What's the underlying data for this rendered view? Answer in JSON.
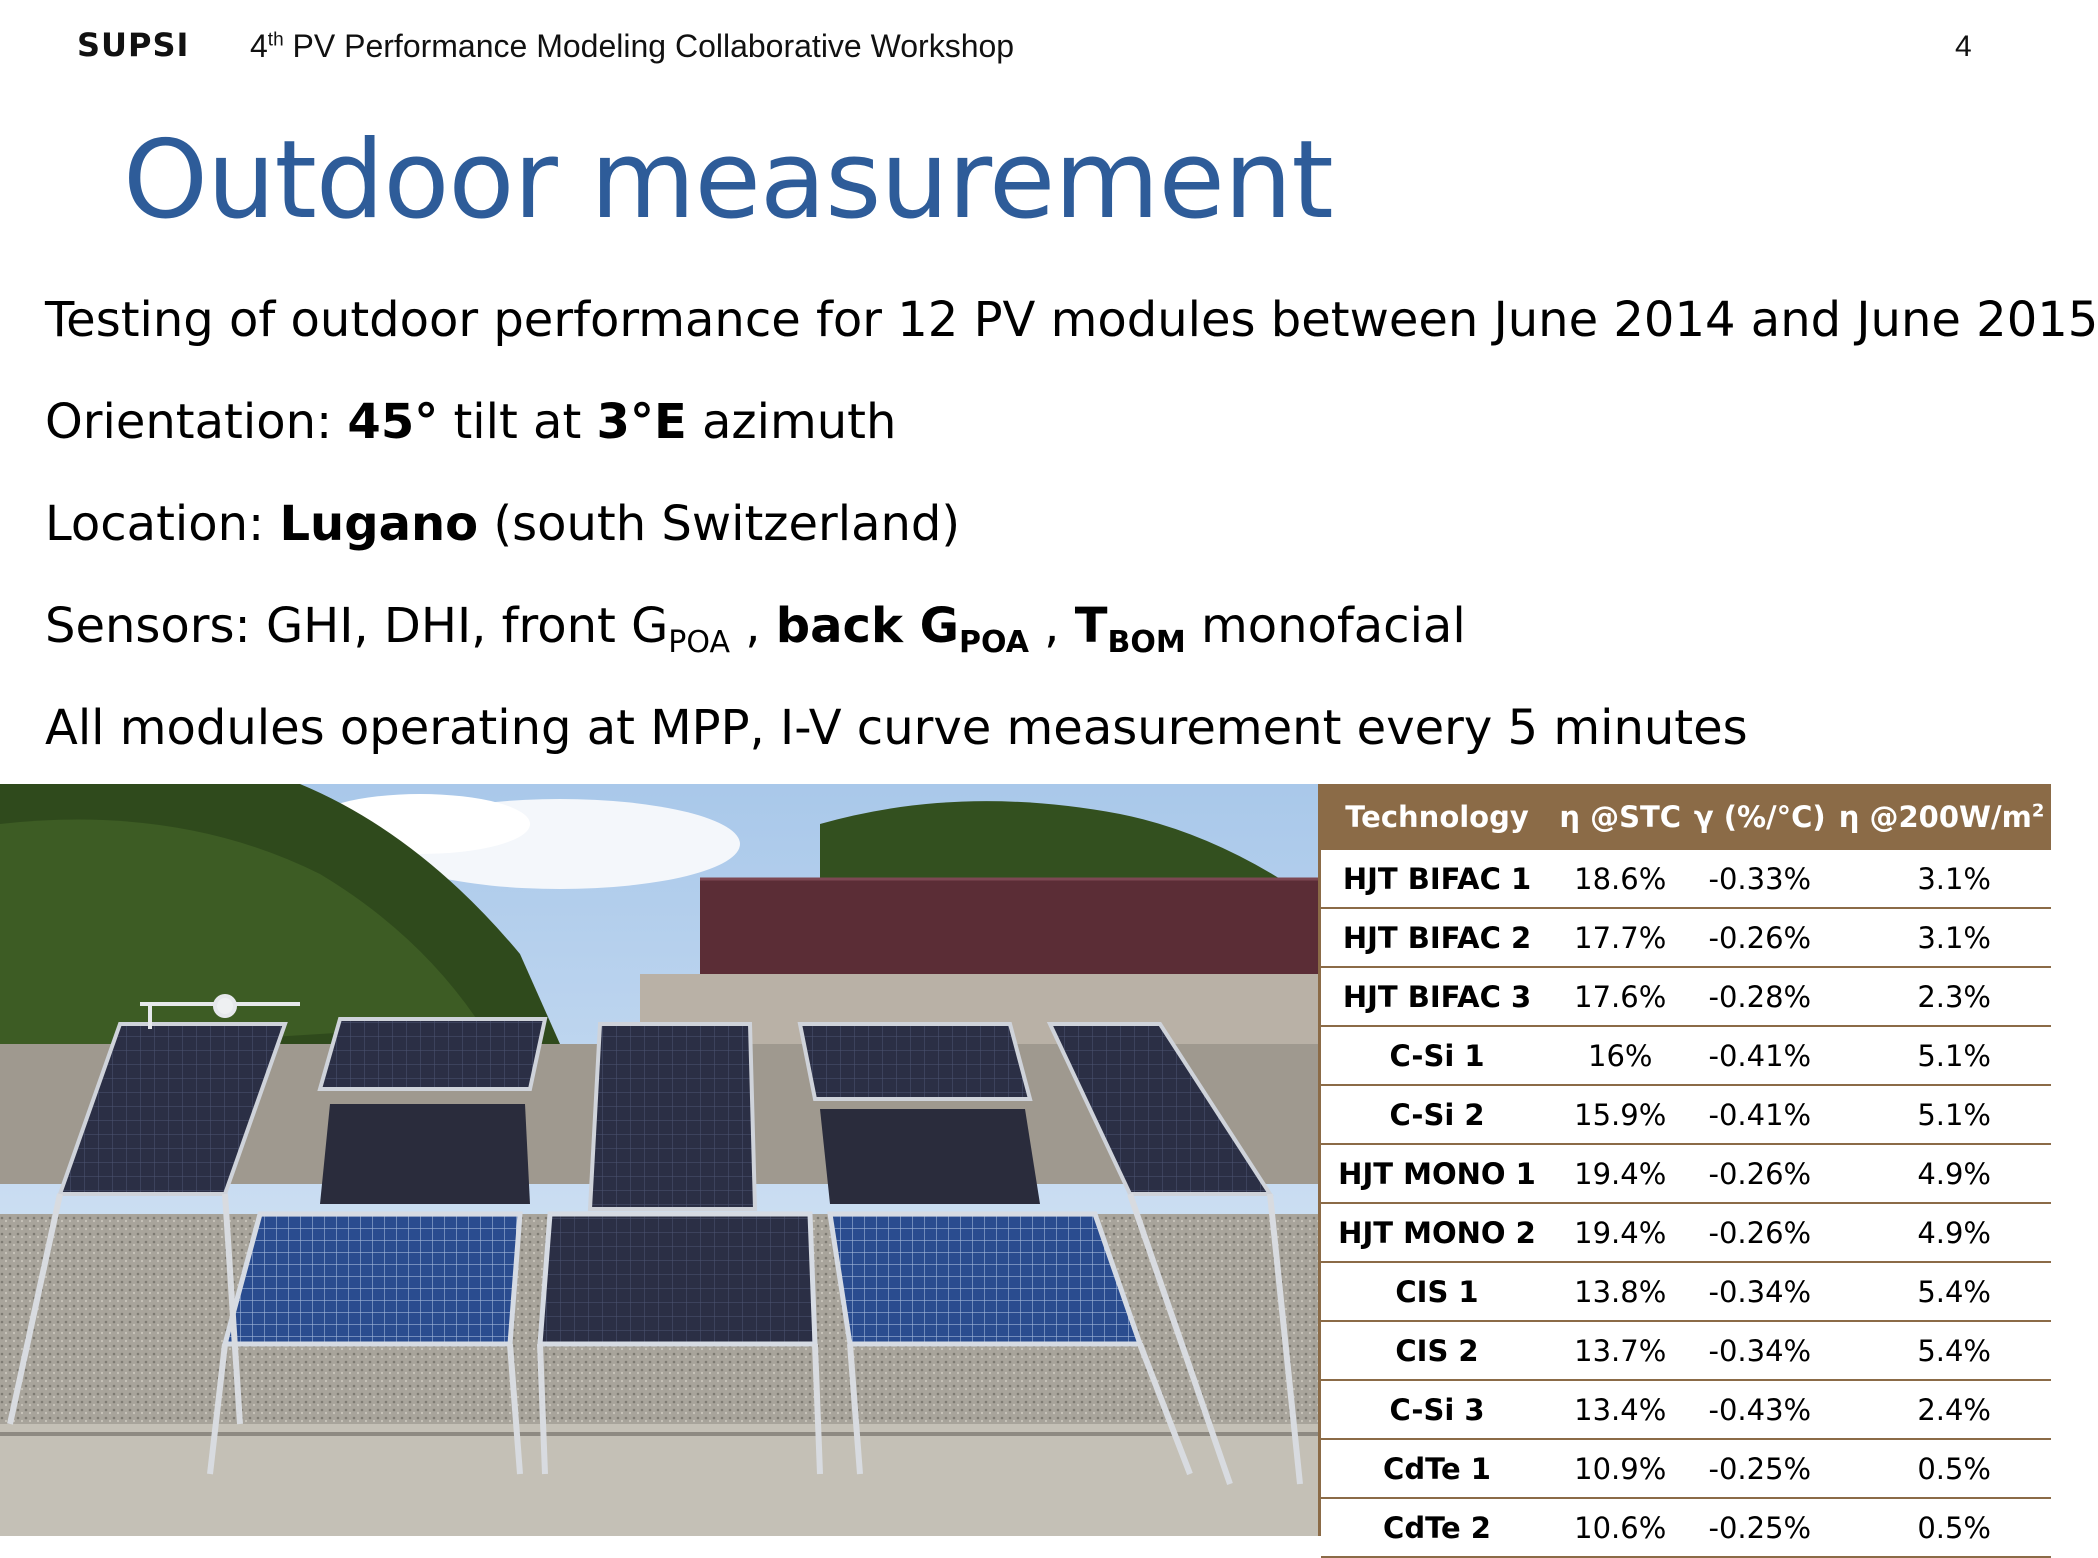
{
  "header": {
    "logo": "SUPSI",
    "ordinal": "4",
    "ordinal_suffix": "th",
    "workshop_title": " PV Performance Modeling Collaborative Workshop",
    "page_number": "4"
  },
  "slide": {
    "title": "Outdoor measurement",
    "bullets": {
      "b1": "Testing of outdoor performance for 12 PV modules between June 2014 and June 2015",
      "b2_prefix": "Orientation: ",
      "b2_tilt": "45°",
      "b2_mid": " tilt at ",
      "b2_azimuth": "3°E",
      "b2_suffix": " azimuth",
      "b3_prefix": "Location: ",
      "b3_city": "Lugano",
      "b3_suffix": " (south Switzerland)",
      "b4_prefix": "Sensors: GHI, DHI, front G",
      "b4_sub1": "POA",
      "b4_sep1": " , ",
      "b4_back": "back G",
      "b4_sub2": "POA",
      "b4_sep2": " , ",
      "b4_t": "T",
      "b4_sub3": "BOM",
      "b4_suffix": " monofacial",
      "b5": "All modules operating at MPP, I-V curve measurement every 5 minutes"
    }
  },
  "table": {
    "headers": {
      "technology": "Technology",
      "eta_stc": "η @STC",
      "gamma": "γ (%/°C)",
      "eta_200": "η @200W/m",
      "eta_200_sup": "2"
    },
    "rows": [
      {
        "tech": "HJT BIFAC 1",
        "stc": "18.6%",
        "gamma": "-0.33%",
        "g200": "3.1%"
      },
      {
        "tech": "HJT BIFAC 2",
        "stc": "17.7%",
        "gamma": "-0.26%",
        "g200": "3.1%"
      },
      {
        "tech": "HJT BIFAC 3",
        "stc": "17.6%",
        "gamma": "-0.28%",
        "g200": "2.3%"
      },
      {
        "tech": "C-Si 1",
        "stc": "16%",
        "gamma": "-0.41%",
        "g200": "5.1%"
      },
      {
        "tech": "C-Si 2",
        "stc": "15.9%",
        "gamma": "-0.41%",
        "g200": "5.1%"
      },
      {
        "tech": "HJT MONO 1",
        "stc": "19.4%",
        "gamma": "-0.26%",
        "g200": "4.9%"
      },
      {
        "tech": "HJT MONO 2",
        "stc": "19.4%",
        "gamma": "-0.26%",
        "g200": "4.9%"
      },
      {
        "tech": "CIS 1",
        "stc": "13.8%",
        "gamma": "-0.34%",
        "g200": "5.4%"
      },
      {
        "tech": "CIS 2",
        "stc": "13.7%",
        "gamma": "-0.34%",
        "g200": "5.4%"
      },
      {
        "tech": "C-Si 3",
        "stc": "13.4%",
        "gamma": "-0.43%",
        "g200": "2.4%"
      },
      {
        "tech": "CdTe 1",
        "stc": "10.9%",
        "gamma": "-0.25%",
        "g200": "0.5%"
      },
      {
        "tech": "CdTe 2",
        "stc": "10.6%",
        "gamma": "-0.25%",
        "g200": "0.5%"
      }
    ]
  },
  "colors": {
    "title": "#2e5c99",
    "table_header": "#8b6b47",
    "table_border": "#8b6b47"
  }
}
